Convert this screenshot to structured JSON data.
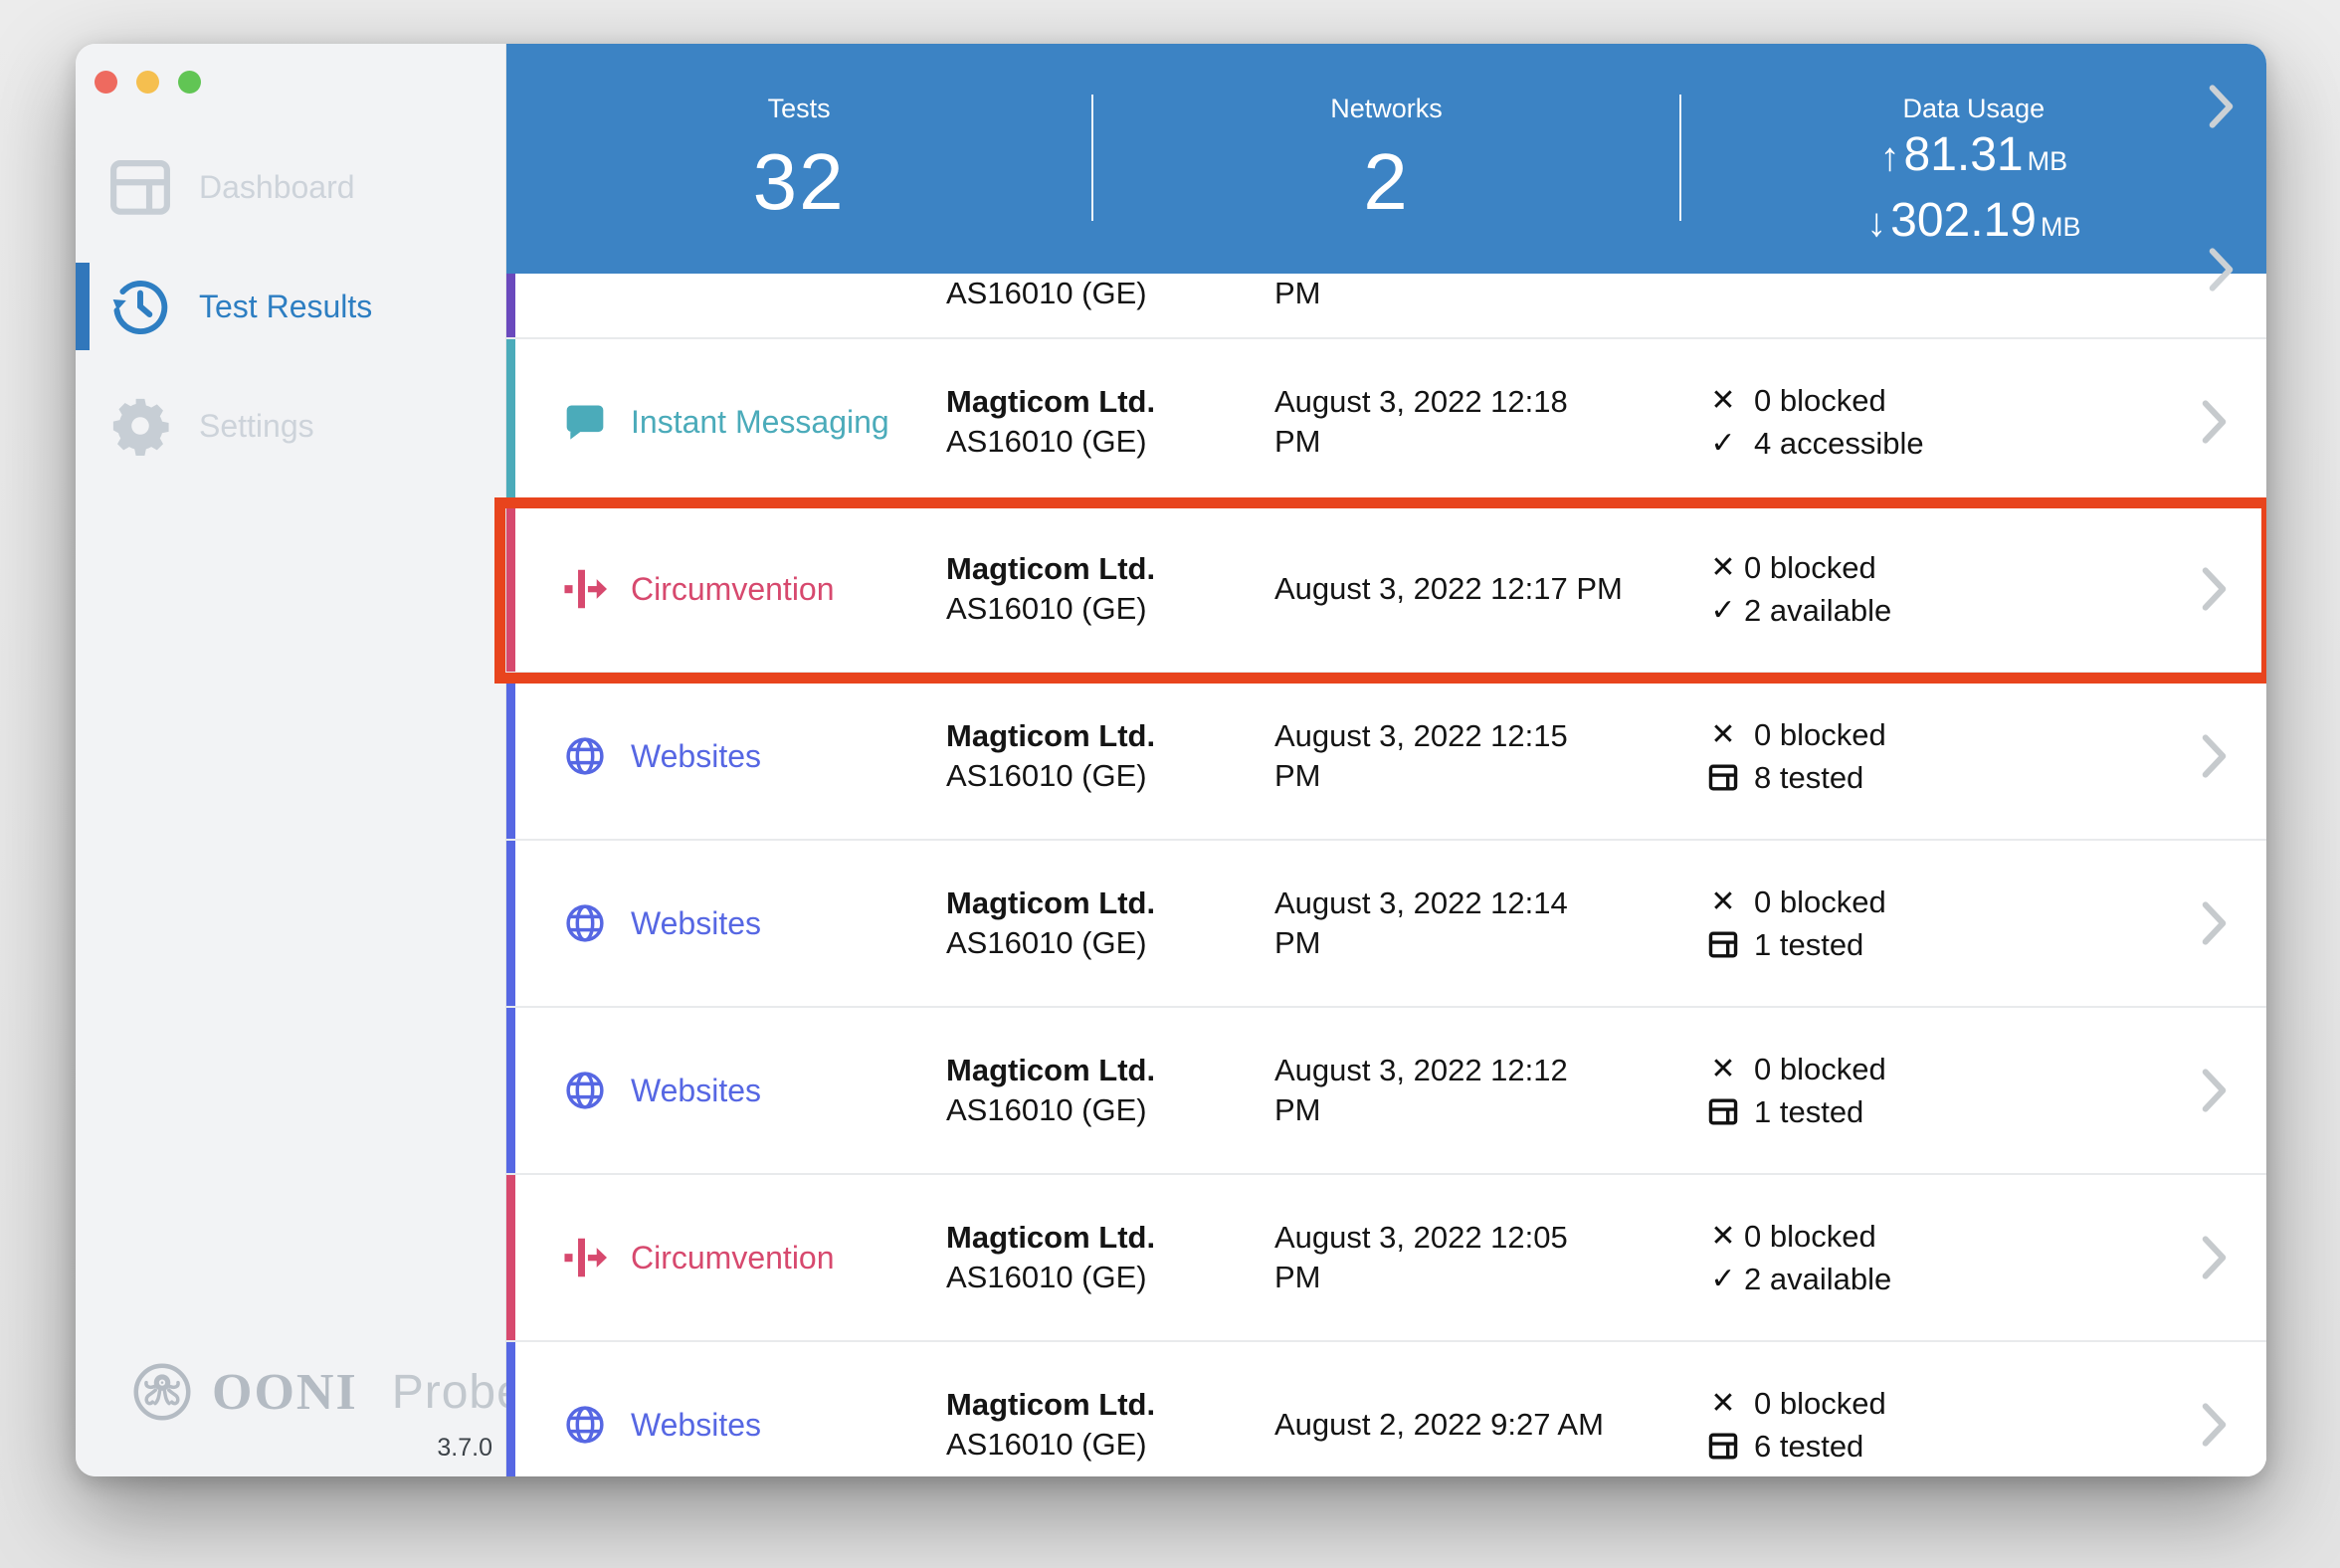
{
  "colors": {
    "header_blue": "#3c83c4",
    "websites": "#5667e3",
    "instant_messaging": "#4babba",
    "circumvention": "#d7496e",
    "performance_purple": "#6a49bd",
    "highlight_red": "#e8441d",
    "chevron_gray": "#c6cacd",
    "sidebar_active_blue": "#2d7ec2",
    "sidebar_inactive_gray": "#cdd3da"
  },
  "window_controls": [
    "close",
    "minimize",
    "zoom"
  ],
  "sidebar": {
    "items": [
      {
        "label": "Dashboard",
        "icon": "dashboard-icon",
        "active": false
      },
      {
        "label": "Test Results",
        "icon": "history-icon",
        "active": true
      },
      {
        "label": "Settings",
        "icon": "gear-icon",
        "active": false
      }
    ],
    "logo": {
      "icon": "ooni-octopus-icon",
      "brand": "OONI",
      "separator": "|",
      "product": "Probe",
      "version": "3.7.0"
    }
  },
  "header": {
    "stats": [
      {
        "label": "Tests",
        "value": "32"
      },
      {
        "label": "Networks",
        "value": "2"
      }
    ],
    "data_usage": {
      "label": "Data Usage",
      "upload_arrow": "↑",
      "upload_value": "81.31",
      "download_arrow": "↓",
      "download_value": "302.19",
      "unit": "MB"
    }
  },
  "rows": [
    {
      "kind": "partial",
      "name": "",
      "icon": "",
      "color": "#6a49bd",
      "bar": "#6a49bd",
      "org": "",
      "asn": "AS16010 (GE)",
      "date_lines": [
        "PM"
      ],
      "status": [],
      "tight": false,
      "highlighted": false,
      "chevron": false
    },
    {
      "kind": "full",
      "name": "Instant Messaging",
      "icon": "chat-icon",
      "color": "#4babba",
      "bar": "#4babba",
      "org": "Magticom Ltd.",
      "asn": "AS16010 (GE)",
      "date_lines": [
        "August 3, 2022 12:18",
        "PM"
      ],
      "status": [
        {
          "icon": "x-icon",
          "text": "0 blocked"
        },
        {
          "icon": "check-icon",
          "text": "4 accessible"
        }
      ],
      "tight": false,
      "highlighted": false,
      "chevron": true
    },
    {
      "kind": "full",
      "name": "Circumvention",
      "icon": "circumvention-icon",
      "color": "#d7496e",
      "bar": "#d7496e",
      "org": "Magticom Ltd.",
      "asn": "AS16010 (GE)",
      "date_lines": [
        "August 3, 2022 12:17 PM"
      ],
      "status": [
        {
          "icon": "x-icon",
          "text": "0 blocked"
        },
        {
          "icon": "check-icon",
          "text": "2 available"
        }
      ],
      "tight": true,
      "highlighted": true,
      "chevron": true
    },
    {
      "kind": "full",
      "name": "Websites",
      "icon": "globe-icon",
      "color": "#5667e3",
      "bar": "#5667e3",
      "org": "Magticom Ltd.",
      "asn": "AS16010 (GE)",
      "date_lines": [
        "August 3, 2022 12:15",
        "PM"
      ],
      "status": [
        {
          "icon": "x-icon",
          "text": "0 blocked"
        },
        {
          "icon": "tested-icon",
          "text": "8 tested"
        }
      ],
      "tight": false,
      "highlighted": false,
      "chevron": true
    },
    {
      "kind": "full",
      "name": "Websites",
      "icon": "globe-icon",
      "color": "#5667e3",
      "bar": "#5667e3",
      "org": "Magticom Ltd.",
      "asn": "AS16010 (GE)",
      "date_lines": [
        "August 3, 2022 12:14",
        "PM"
      ],
      "status": [
        {
          "icon": "x-icon",
          "text": "0 blocked"
        },
        {
          "icon": "tested-icon",
          "text": "1 tested"
        }
      ],
      "tight": false,
      "highlighted": false,
      "chevron": true
    },
    {
      "kind": "full",
      "name": "Websites",
      "icon": "globe-icon",
      "color": "#5667e3",
      "bar": "#5667e3",
      "org": "Magticom Ltd.",
      "asn": "AS16010 (GE)",
      "date_lines": [
        "August 3, 2022 12:12",
        "PM"
      ],
      "status": [
        {
          "icon": "x-icon",
          "text": "0 blocked"
        },
        {
          "icon": "tested-icon",
          "text": "1 tested"
        }
      ],
      "tight": false,
      "highlighted": false,
      "chevron": true
    },
    {
      "kind": "full",
      "name": "Circumvention",
      "icon": "circumvention-icon",
      "color": "#d7496e",
      "bar": "#d7496e",
      "org": "Magticom Ltd.",
      "asn": "AS16010 (GE)",
      "date_lines": [
        "August 3, 2022 12:05",
        "PM"
      ],
      "status": [
        {
          "icon": "x-icon",
          "text": "0 blocked"
        },
        {
          "icon": "check-icon",
          "text": "2 available"
        }
      ],
      "tight": true,
      "highlighted": false,
      "chevron": true
    },
    {
      "kind": "full",
      "name": "Websites",
      "icon": "globe-icon",
      "color": "#5667e3",
      "bar": "#5667e3",
      "org": "Magticom Ltd.",
      "asn": "AS16010 (GE)",
      "date_lines": [
        "August 2, 2022 9:27 AM"
      ],
      "status": [
        {
          "icon": "x-icon",
          "text": "0 blocked"
        },
        {
          "icon": "tested-icon",
          "text": "6 tested"
        }
      ],
      "tight": false,
      "highlighted": false,
      "chevron": true
    }
  ]
}
